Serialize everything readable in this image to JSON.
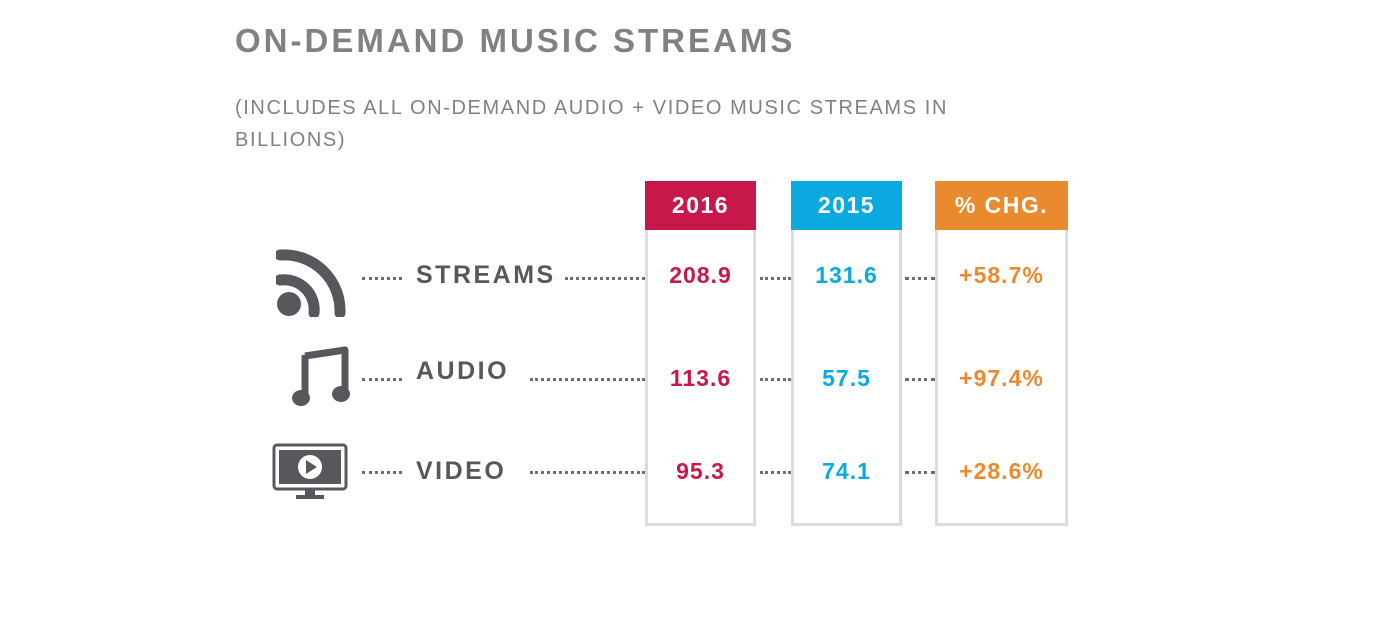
{
  "header": {
    "title": "ON-DEMAND MUSIC STREAMS",
    "subtitle": "(INCLUDES ALL ON-DEMAND AUDIO + VIDEO MUSIC STREAMS IN BILLIONS)"
  },
  "colors": {
    "y2016": "#c8174a",
    "y2015": "#0aa9e0",
    "chg": "#ea8a2e",
    "label": "#57585c",
    "icon": "#57585c"
  },
  "chart_data": {
    "type": "table",
    "title": "ON-DEMAND MUSIC STREAMS",
    "subtitle": "(INCLUDES ALL ON-DEMAND AUDIO + VIDEO MUSIC STREAMS IN BILLIONS)",
    "columns": [
      "2016",
      "2015",
      "% CHG."
    ],
    "rows": [
      {
        "label": "STREAMS",
        "icon": "rss-streams-icon",
        "values": [
          "208.9",
          "131.6",
          "+58.7%"
        ]
      },
      {
        "label": "AUDIO",
        "icon": "music-note-icon",
        "values": [
          "113.6",
          "57.5",
          "+97.4%"
        ]
      },
      {
        "label": "VIDEO",
        "icon": "tv-play-icon",
        "values": [
          "95.3",
          "74.1",
          "+28.6%"
        ]
      }
    ]
  }
}
